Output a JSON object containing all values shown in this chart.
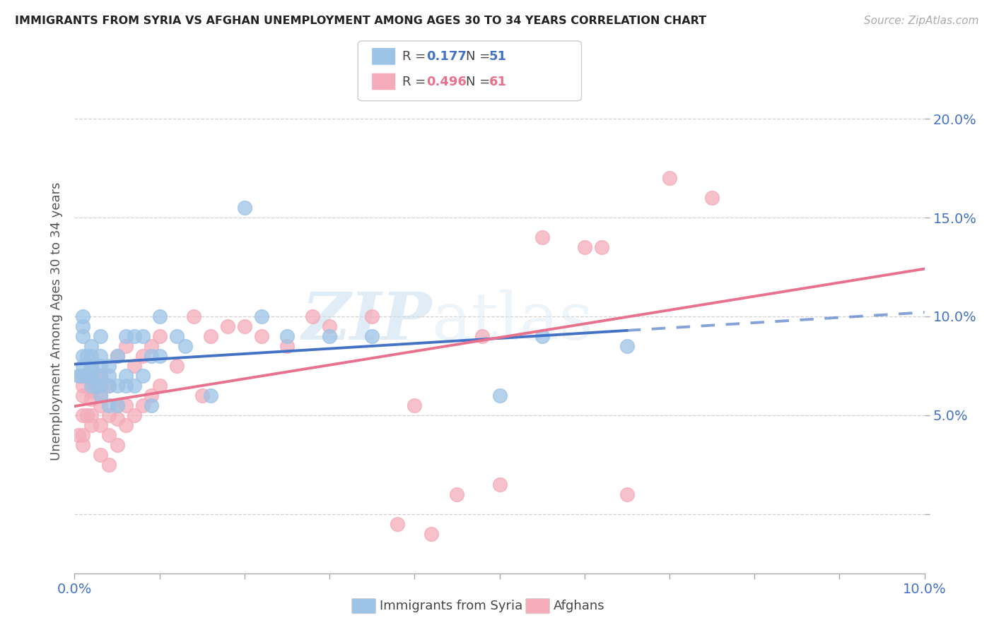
{
  "title": "IMMIGRANTS FROM SYRIA VS AFGHAN UNEMPLOYMENT AMONG AGES 30 TO 34 YEARS CORRELATION CHART",
  "source": "Source: ZipAtlas.com",
  "ylabel": "Unemployment Among Ages 30 to 34 years",
  "xlim": [
    0.0,
    0.1
  ],
  "ylim": [
    -0.03,
    0.225
  ],
  "xticks": [
    0.0,
    0.01,
    0.02,
    0.03,
    0.04,
    0.05,
    0.06,
    0.07,
    0.08,
    0.09,
    0.1
  ],
  "xtick_labels": [
    "0.0%",
    "",
    "",
    "",
    "",
    "",
    "",
    "",
    "",
    "",
    "10.0%"
  ],
  "yticks": [
    0.0,
    0.05,
    0.1,
    0.15,
    0.2
  ],
  "ytick_labels": [
    "",
    "5.0%",
    "10.0%",
    "15.0%",
    "20.0%"
  ],
  "syria_color": "#9dc3e6",
  "afghan_color": "#f4acba",
  "syria_line_color": "#4472c4",
  "afghan_line_color": "#e8718d",
  "R_syria": 0.177,
  "N_syria": 51,
  "R_afghan": 0.496,
  "N_afghan": 61,
  "watermark_zip": "ZIP",
  "watermark_atlas": "atlas",
  "syria_x": [
    0.0005,
    0.0007,
    0.001,
    0.001,
    0.001,
    0.001,
    0.001,
    0.0015,
    0.0015,
    0.002,
    0.002,
    0.002,
    0.002,
    0.002,
    0.002,
    0.0025,
    0.003,
    0.003,
    0.003,
    0.003,
    0.003,
    0.003,
    0.004,
    0.004,
    0.004,
    0.004,
    0.005,
    0.005,
    0.005,
    0.006,
    0.006,
    0.006,
    0.007,
    0.007,
    0.008,
    0.008,
    0.009,
    0.009,
    0.01,
    0.01,
    0.012,
    0.013,
    0.016,
    0.02,
    0.022,
    0.025,
    0.03,
    0.035,
    0.05,
    0.055,
    0.065
  ],
  "syria_y": [
    0.07,
    0.07,
    0.075,
    0.08,
    0.09,
    0.095,
    0.1,
    0.07,
    0.08,
    0.065,
    0.07,
    0.073,
    0.075,
    0.08,
    0.085,
    0.065,
    0.06,
    0.065,
    0.07,
    0.075,
    0.08,
    0.09,
    0.055,
    0.065,
    0.07,
    0.075,
    0.055,
    0.065,
    0.08,
    0.065,
    0.07,
    0.09,
    0.065,
    0.09,
    0.07,
    0.09,
    0.055,
    0.08,
    0.08,
    0.1,
    0.09,
    0.085,
    0.06,
    0.155,
    0.1,
    0.09,
    0.09,
    0.09,
    0.06,
    0.09,
    0.085
  ],
  "afghan_x": [
    0.0005,
    0.001,
    0.001,
    0.001,
    0.001,
    0.001,
    0.001,
    0.0015,
    0.002,
    0.002,
    0.002,
    0.002,
    0.002,
    0.0025,
    0.003,
    0.003,
    0.003,
    0.003,
    0.003,
    0.004,
    0.004,
    0.004,
    0.004,
    0.005,
    0.005,
    0.005,
    0.005,
    0.006,
    0.006,
    0.006,
    0.007,
    0.007,
    0.008,
    0.008,
    0.009,
    0.009,
    0.01,
    0.01,
    0.012,
    0.014,
    0.015,
    0.016,
    0.018,
    0.02,
    0.022,
    0.025,
    0.028,
    0.03,
    0.035,
    0.038,
    0.04,
    0.042,
    0.045,
    0.048,
    0.05,
    0.055,
    0.06,
    0.062,
    0.065,
    0.07,
    0.075
  ],
  "afghan_y": [
    0.04,
    0.035,
    0.04,
    0.05,
    0.06,
    0.065,
    0.07,
    0.05,
    0.045,
    0.05,
    0.058,
    0.062,
    0.068,
    0.065,
    0.03,
    0.045,
    0.055,
    0.06,
    0.07,
    0.025,
    0.04,
    0.05,
    0.065,
    0.035,
    0.048,
    0.055,
    0.08,
    0.045,
    0.055,
    0.085,
    0.05,
    0.075,
    0.055,
    0.08,
    0.06,
    0.085,
    0.065,
    0.09,
    0.075,
    0.1,
    0.06,
    0.09,
    0.095,
    0.095,
    0.09,
    0.085,
    0.1,
    0.095,
    0.1,
    -0.005,
    0.055,
    -0.01,
    0.01,
    0.09,
    0.015,
    0.14,
    0.135,
    0.135,
    0.01,
    0.17,
    0.16
  ]
}
